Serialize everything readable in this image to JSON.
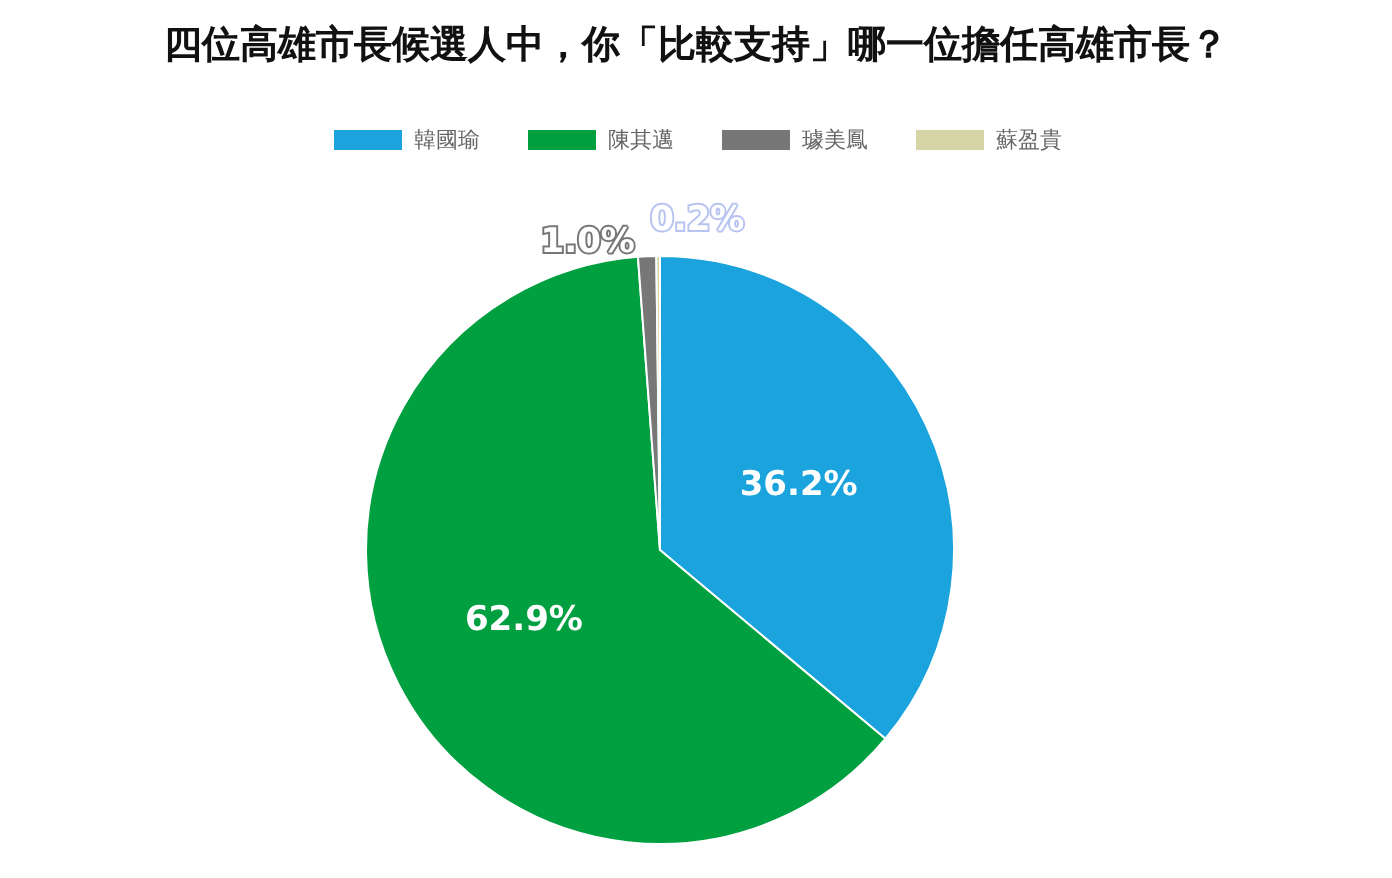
{
  "chart_data": {
    "type": "pie",
    "title": "四位高雄市長候選人中，你「比較支持」哪一位擔任高雄市長？",
    "categories": [
      "韓國瑜",
      "陳其邁",
      "璩美鳳",
      "蘇盈貴"
    ],
    "values": [
      36.2,
      62.9,
      1.0,
      0.2
    ],
    "value_labels": [
      "36.2%",
      "62.9%",
      "1.0%",
      "0.2%"
    ],
    "colors": [
      "#1aa3dd",
      "#00a040",
      "#777777",
      "#d5d5a5"
    ],
    "legend": "top"
  }
}
